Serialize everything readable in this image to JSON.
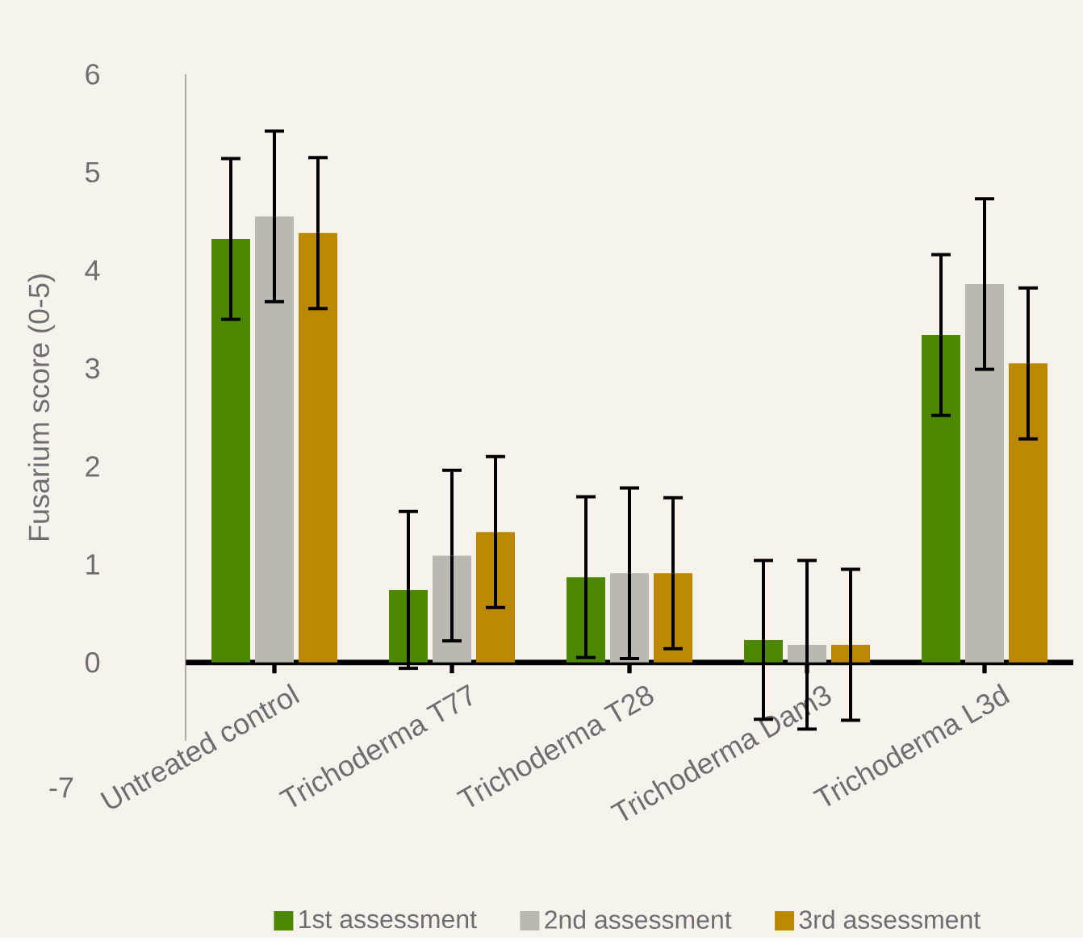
{
  "chart_data": {
    "type": "bar",
    "ylabel": "Fusarium score (0-5)",
    "categories": [
      "Untreated control",
      "Trichoderma T77",
      "Trichoderma T28",
      "Trichoderma Dam3",
      "Trichoderma L3d"
    ],
    "series": [
      {
        "name": "1st assessment",
        "color": "#4d8700",
        "values": [
          4.32,
          0.74,
          0.87,
          0.23,
          3.34
        ],
        "errors": [
          0.82,
          0.8,
          0.82,
          0.81,
          0.82
        ]
      },
      {
        "name": "2nd assessment",
        "color": "#bbb8b1",
        "values": [
          4.55,
          1.09,
          0.91,
          0.18,
          3.86
        ],
        "errors": [
          0.87,
          0.87,
          0.87,
          0.86,
          0.87
        ]
      },
      {
        "name": "3rd assessment",
        "color": "#bb8800",
        "values": [
          4.38,
          1.33,
          0.91,
          0.18,
          3.05
        ],
        "errors": [
          0.77,
          0.77,
          0.77,
          0.77,
          0.77
        ]
      }
    ],
    "ylim": [
      -0.8,
      6
    ],
    "yticks": [
      0,
      1,
      2,
      3,
      4,
      5,
      6
    ],
    "grid": false,
    "legend": "bottom",
    "annotations": [
      "-7"
    ]
  }
}
